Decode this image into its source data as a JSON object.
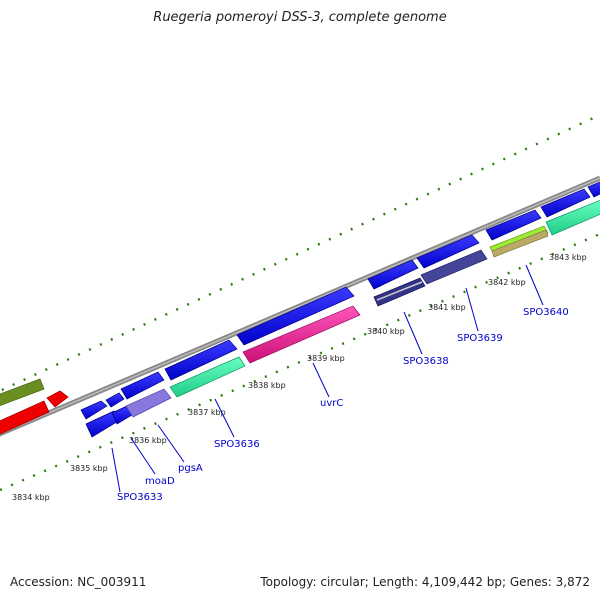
{
  "title": "Ruegeria pomeroyi DSS-3, complete genome",
  "footer": {
    "accession": "Accession: NC_003911",
    "summary": "Topology: circular; Length: 4,109,442 bp; Genes: 3,872"
  },
  "ticks": [
    "3834 kbp",
    "3835 kbp",
    "3836 kbp",
    "3837 kbp",
    "3838 kbp",
    "3839 kbp",
    "3840 kbp",
    "3841 kbp",
    "3842 kbp",
    "3843 kbp"
  ],
  "gene_labels": [
    "SPO3633",
    "moaD",
    "pgsA",
    "SPO3636",
    "uvrC",
    "SPO3638",
    "SPO3639",
    "SPO3640"
  ],
  "colors": {
    "backbone": "#888888",
    "tick": "#2e7d12",
    "forward_cds": "#0000ee",
    "reverse_cds": "#1010dd",
    "teal": "#33ee99",
    "magenta": "#ee2299",
    "olive": "#6b8e23",
    "red": "#ee0000",
    "lavender": "#8877dd",
    "navy": "#333388",
    "tan": "#bbaa66",
    "lime": "#99ee33",
    "label": "#0000cc"
  }
}
